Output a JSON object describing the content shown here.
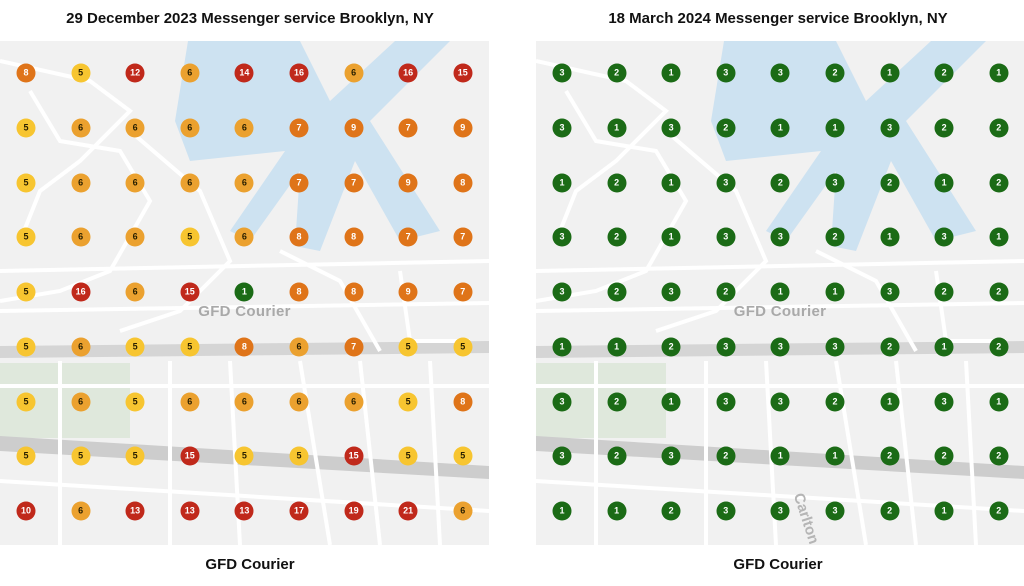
{
  "colors": {
    "green": "#1b6b16",
    "yellow": "#f7c530",
    "orange": "#eba12f",
    "dark_orange": "#df7419",
    "red": "#c0291b",
    "water": "#cde2f1",
    "park": "#dfe8dc"
  },
  "left": {
    "title": "29 December 2023 Messenger service Brooklyn, NY",
    "map_label": "GFD Courier",
    "street_label": "",
    "footer": "GFD Courier",
    "grid": [
      [
        8,
        5,
        12,
        6,
        14,
        16,
        6,
        16,
        15
      ],
      [
        5,
        6,
        6,
        6,
        6,
        7,
        9,
        7,
        9
      ],
      [
        5,
        6,
        6,
        6,
        6,
        7,
        7,
        9,
        8
      ],
      [
        5,
        6,
        6,
        5,
        6,
        8,
        8,
        7,
        7
      ],
      [
        5,
        16,
        6,
        15,
        1,
        8,
        8,
        9,
        7
      ],
      [
        5,
        6,
        5,
        5,
        8,
        6,
        7,
        5,
        5
      ],
      [
        5,
        6,
        5,
        6,
        6,
        6,
        6,
        5,
        8
      ],
      [
        5,
        5,
        5,
        15,
        5,
        5,
        15,
        5,
        5
      ],
      [
        10,
        6,
        13,
        13,
        13,
        17,
        19,
        21,
        6
      ]
    ]
  },
  "right": {
    "title": "18 March 2024 Messenger service Brooklyn, NY",
    "map_label": "GFD Courier",
    "street_label": "Carlton",
    "footer": "GFD Courier",
    "grid": [
      [
        3,
        2,
        1,
        3,
        3,
        2,
        1,
        2,
        1
      ],
      [
        3,
        1,
        3,
        2,
        1,
        1,
        3,
        2,
        2
      ],
      [
        1,
        2,
        1,
        3,
        2,
        3,
        2,
        1,
        2
      ],
      [
        3,
        2,
        1,
        3,
        3,
        2,
        1,
        3,
        1
      ],
      [
        3,
        2,
        3,
        2,
        1,
        1,
        3,
        2,
        2
      ],
      [
        1,
        1,
        2,
        3,
        3,
        3,
        2,
        1,
        2
      ],
      [
        3,
        2,
        1,
        3,
        3,
        2,
        1,
        3,
        1
      ],
      [
        3,
        2,
        3,
        2,
        1,
        1,
        2,
        2,
        2
      ],
      [
        1,
        1,
        2,
        3,
        3,
        3,
        2,
        1,
        2
      ]
    ]
  }
}
